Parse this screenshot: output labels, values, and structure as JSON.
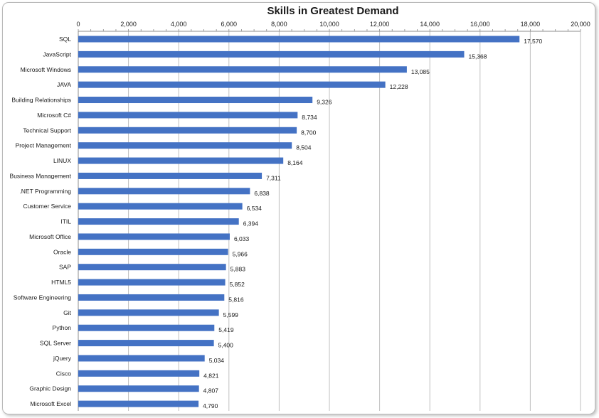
{
  "chart_data": {
    "type": "bar",
    "orientation": "horizontal",
    "title": "Skills in Greatest Demand",
    "xlabel": "",
    "ylabel": "",
    "xlim": [
      0,
      20000
    ],
    "x_ticks": [
      "0",
      "2,000",
      "4,000",
      "6,000",
      "8,000",
      "10,000",
      "12,000",
      "14,000",
      "16,000",
      "18,000",
      "20,000"
    ],
    "x_tick_values": [
      0,
      2000,
      4000,
      6000,
      8000,
      10000,
      12000,
      14000,
      16000,
      18000,
      20000
    ],
    "x_axis_position": "top",
    "grid": true,
    "bar_color": "#4472C4",
    "categories": [
      "SQL",
      "JavaScript",
      "Microsoft Windows",
      "JAVA",
      "Building Relationships",
      "Microsoft C#",
      "Technical Support",
      "Project Management",
      "LINUX",
      "Business Management",
      ".NET Programming",
      "Customer Service",
      "ITIL",
      "Microsoft Office",
      "Oracle",
      "SAP",
      "HTML5",
      "Software Engineering",
      "Git",
      "Python",
      "SQL Server",
      "jQuery",
      "Cisco",
      "Graphic Design",
      "Microsoft Excel"
    ],
    "values": [
      17570,
      15368,
      13085,
      12228,
      9326,
      8734,
      8700,
      8504,
      8164,
      7311,
      6838,
      6534,
      6394,
      6033,
      5966,
      5883,
      5852,
      5816,
      5599,
      5419,
      5400,
      5034,
      4821,
      4807,
      4790
    ],
    "data_labels": [
      "17,570",
      "15,368",
      "13,085",
      "12,228",
      "9,326",
      "8,734",
      "8,700",
      "8,504",
      "8,164",
      "7,311",
      "6,838",
      "6,534",
      "6,394",
      "6,033",
      "5,966",
      "5,883",
      "5,852",
      "5,816",
      "5,599",
      "5,419",
      "5,400",
      "5,034",
      "4,821",
      "4,807",
      "4,790"
    ]
  }
}
